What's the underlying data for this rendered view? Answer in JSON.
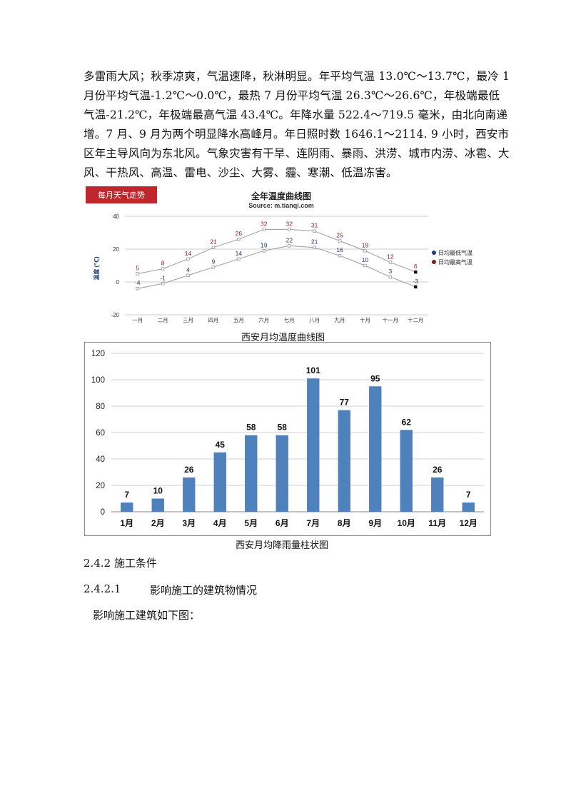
{
  "paragraph": {
    "lines": [
      "多雷雨大风；秋季凉爽，气温速降，秋淋明显。年平均气温 13.0℃～13.7℃，最冷 1",
      "月份平均气温-1.2℃～0.0℃，最热 7 月份平均气温 26.3℃～26.6℃，年极端最低",
      "气温-21.2℃，年极端最高气温 43.4℃。年降水量 522.4～719.5 毫米，由北向南递",
      "增。7 月、9 月为两个明显降水高峰月。年日照时数 1646.1～2114. 9 小时，西安市",
      "区年主导风向为东北风。气象灾害有干旱、连阴雨、暴雨、洪涝、城市内涝、冰雹、大",
      "风、干热风、高温、雷电、沙尘、大雾、霾、寒潮、低温冻害。"
    ]
  },
  "temp_chart": {
    "badge": "每月天气走势",
    "title": "全年温度曲线图",
    "source": "Source: m.tianqi.com",
    "ylabel": "温度 (℃)",
    "caption": "西安月均温度曲线图"
  },
  "rain_chart": {
    "caption": "西安月均降雨量柱状图"
  },
  "colors": {
    "bar": "#4f81bd",
    "low_line": "#999999",
    "high_line": "#999999",
    "low_marker": "#1f3b73",
    "high_marker": "#8b1a1a",
    "badge_bg": "#c0272d"
  },
  "section": {
    "h1": "2.4.2 施工条件",
    "h2_num": "2.4.2.1",
    "h2_text": "影响施工的建筑物情况",
    "body": "影响施工建筑如下图："
  },
  "chart_data": [
    {
      "type": "line",
      "title": "全年温度曲线图",
      "categories": [
        "一月",
        "二月",
        "三月",
        "四月",
        "五月",
        "六月",
        "七月",
        "八月",
        "九月",
        "十月",
        "十一月",
        "十二月"
      ],
      "series": [
        {
          "name": "日均最低气温",
          "values": [
            -4,
            -1,
            4,
            9,
            14,
            19,
            22,
            21,
            16,
            10,
            3,
            -3
          ]
        },
        {
          "name": "日均最高气温",
          "values": [
            5,
            8,
            14,
            21,
            26,
            32,
            32,
            31,
            25,
            19,
            12,
            6
          ]
        }
      ],
      "ylabel": "温度 (℃)",
      "ylim": [
        -20,
        40
      ],
      "yticks": [
        -20,
        0,
        20,
        40
      ],
      "grid": true,
      "legend": "right"
    },
    {
      "type": "bar",
      "categories": [
        "1月",
        "2月",
        "3月",
        "4月",
        "5月",
        "6月",
        "7月",
        "8月",
        "9月",
        "10月",
        "11月",
        "12月"
      ],
      "values": [
        7,
        10,
        26,
        45,
        58,
        58,
        101,
        77,
        95,
        62,
        26,
        7
      ],
      "ylim": [
        0,
        120
      ],
      "yticks": [
        0,
        20,
        40,
        60,
        80,
        100,
        120
      ],
      "grid": true
    }
  ]
}
